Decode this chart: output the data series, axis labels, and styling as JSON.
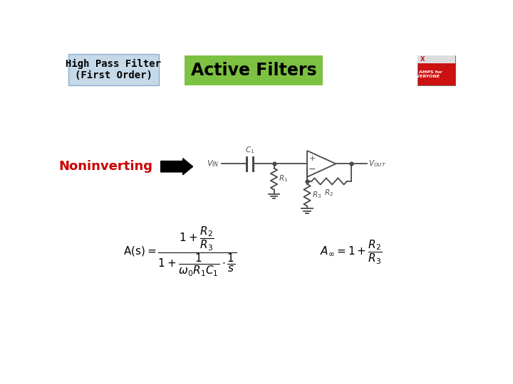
{
  "title_box_text": "High Pass Filter\n(First Order)",
  "title_box_bg": "#c5d9e8",
  "title_box_border": "#8aaccb",
  "active_filters_text": "Active Filters",
  "active_filters_bg": "#7dc142",
  "background_color": "#ffffff",
  "noninverting_text": "Noninverting",
  "noninverting_color": "#cc0000",
  "line_color": "#4a4a4a",
  "line_lw": 1.3
}
